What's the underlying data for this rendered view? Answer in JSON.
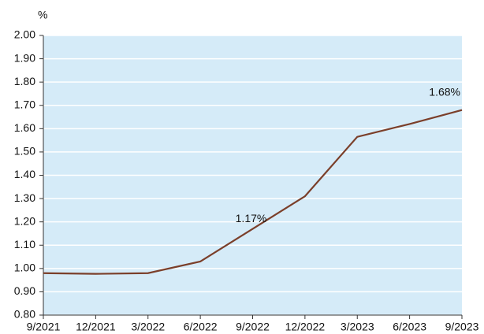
{
  "chart_data": {
    "type": "line",
    "y_unit": "%",
    "categories": [
      "9/2021",
      "12/2021",
      "3/2022",
      "6/2022",
      "9/2022",
      "12/2022",
      "3/2023",
      "6/2023",
      "9/2023"
    ],
    "values": [
      0.98,
      0.977,
      0.98,
      1.03,
      1.17,
      1.31,
      1.565,
      1.62,
      1.68
    ],
    "value_labels": [
      null,
      null,
      null,
      null,
      "1.17%",
      null,
      null,
      null,
      "1.68%"
    ],
    "color": "#7b3f2a",
    "ylim": [
      0.8,
      2.0
    ],
    "yticks": [
      {
        "value": 0.8,
        "label": "0.80"
      },
      {
        "value": 0.9,
        "label": "0.90"
      },
      {
        "value": 1.0,
        "label": "1.00"
      },
      {
        "value": 1.1,
        "label": "1.10"
      },
      {
        "value": 1.2,
        "label": "1.20"
      },
      {
        "value": 1.3,
        "label": "1.30"
      },
      {
        "value": 1.4,
        "label": "1.40"
      },
      {
        "value": 1.5,
        "label": "1.50"
      },
      {
        "value": 1.6,
        "label": "1.60"
      },
      {
        "value": 1.7,
        "label": "1.70"
      },
      {
        "value": 1.8,
        "label": "1.80"
      },
      {
        "value": 1.9,
        "label": "1.90"
      },
      {
        "value": 2.0,
        "label": "2.00"
      }
    ],
    "grid": true
  }
}
